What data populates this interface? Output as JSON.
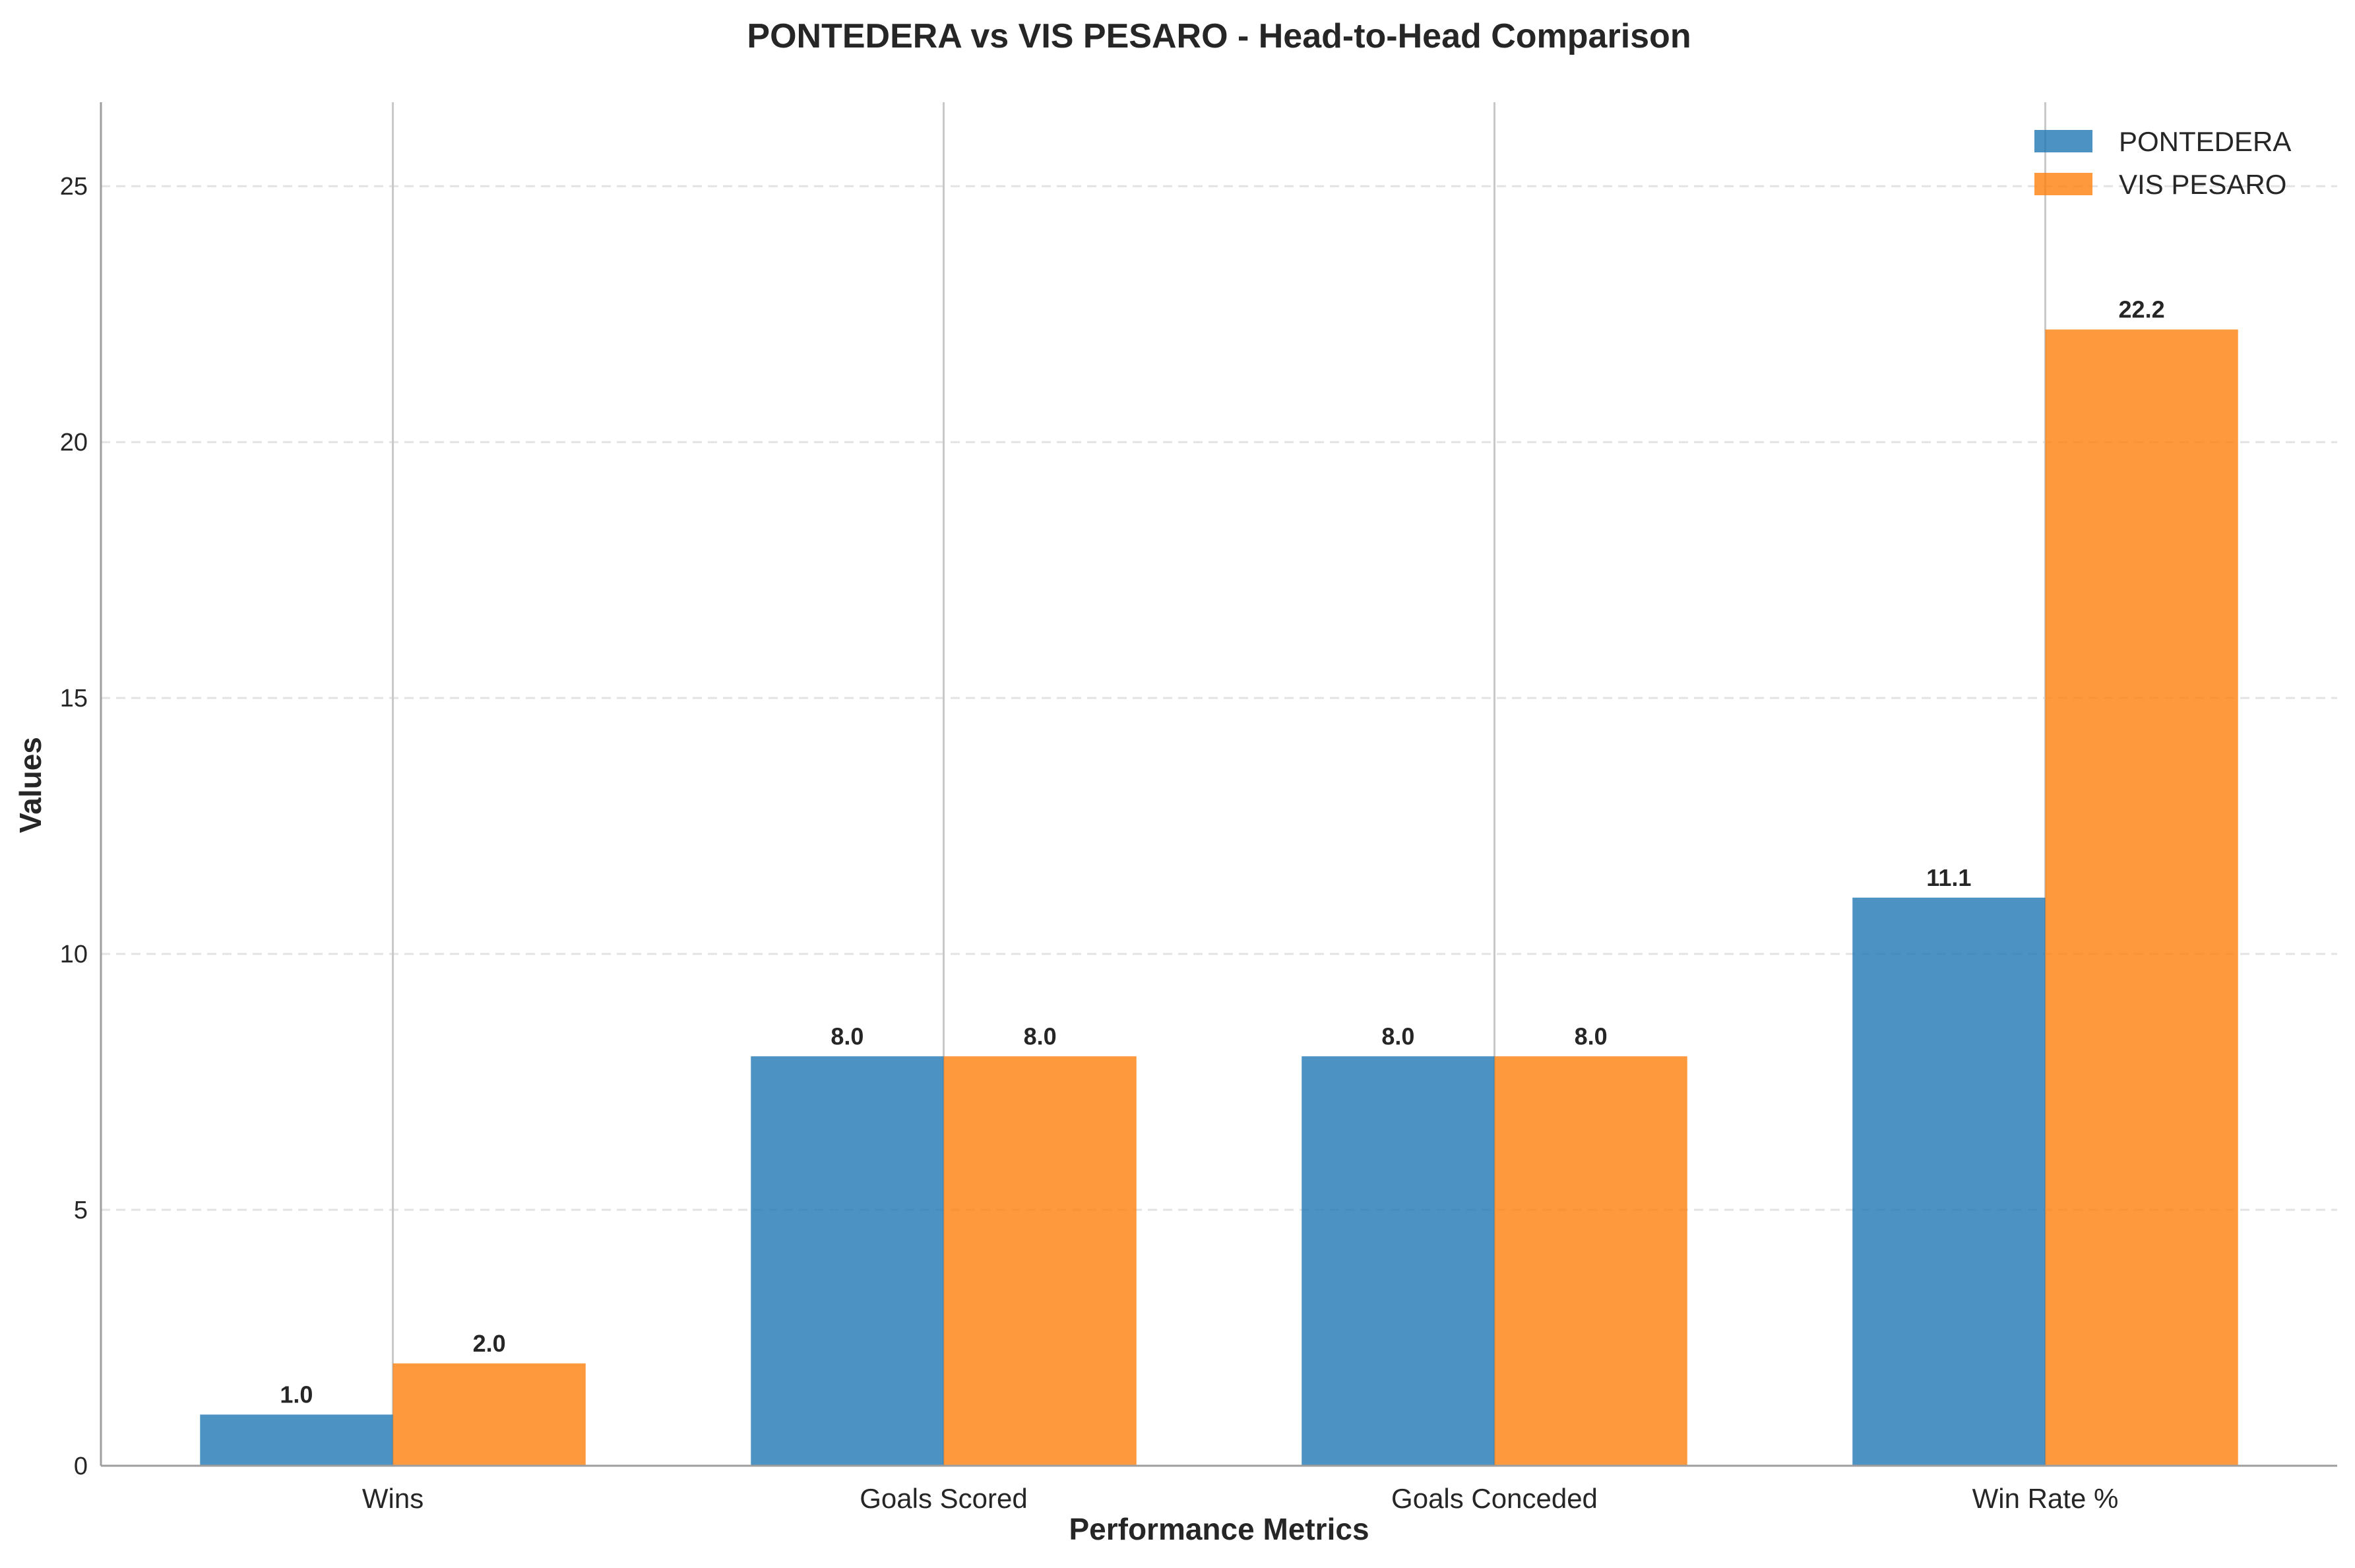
{
  "chart_data": {
    "type": "bar",
    "title": "PONTEDERA vs VIS PESARO - Head-to-Head Comparison",
    "xlabel": "Performance Metrics",
    "ylabel": "Values",
    "categories": [
      "Wins",
      "Goals Scored",
      "Goals Conceded",
      "Win Rate %"
    ],
    "series": [
      {
        "name": "PONTEDERA",
        "values": [
          1.0,
          8.0,
          8.0,
          11.1
        ],
        "labels": [
          "1.0",
          "8.0",
          "8.0",
          "11.1"
        ],
        "color": "#1f77b4"
      },
      {
        "name": "VIS PESARO",
        "values": [
          2.0,
          8.0,
          8.0,
          22.2
        ],
        "labels": [
          "2.0",
          "8.0",
          "8.0",
          "22.2"
        ],
        "color": "#ff7f0e"
      }
    ],
    "ylim": [
      0,
      26.64
    ],
    "yticks": [
      0,
      5,
      10,
      15,
      20,
      25
    ],
    "ytick_labels": [
      "0",
      "5",
      "10",
      "15",
      "20",
      "25"
    ],
    "grid": "y-dashed",
    "legend_position": "top-right"
  }
}
